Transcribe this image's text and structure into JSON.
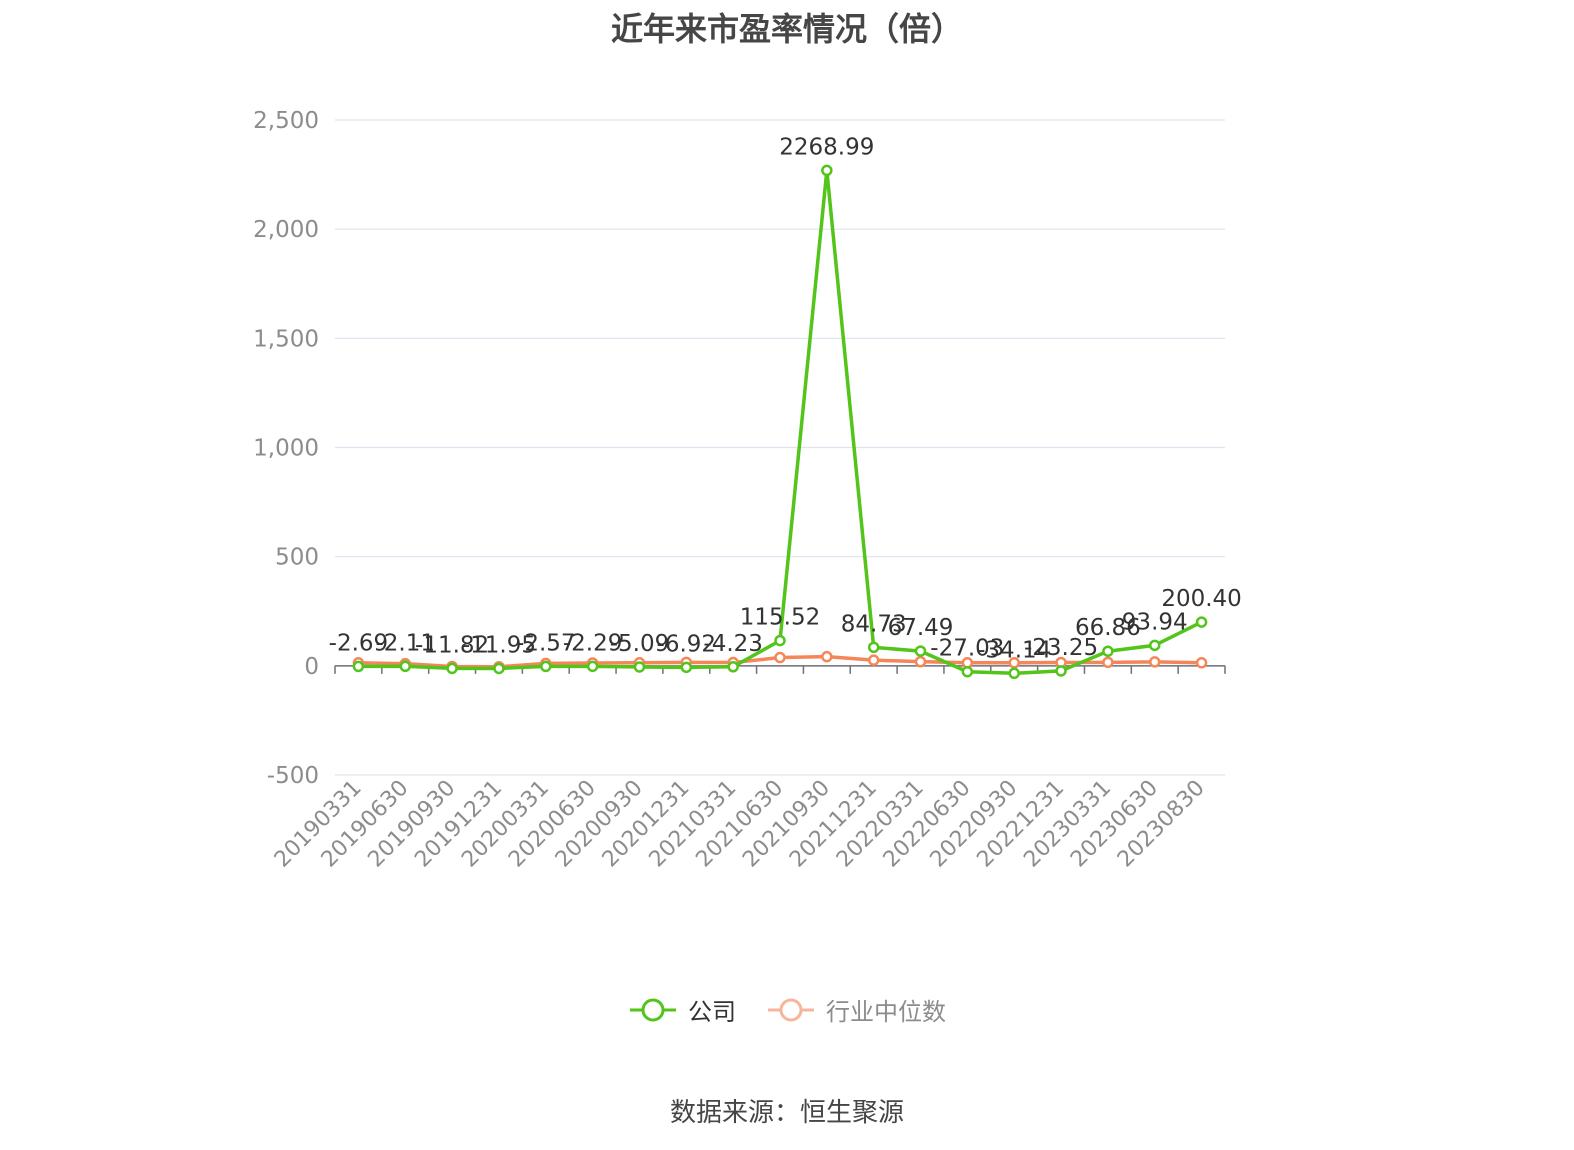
{
  "title": "近年来市盈率情况（倍）",
  "source": "数据来源：恒生聚源",
  "colors": {
    "company": "#52c41a",
    "industry": "#f5865a",
    "grid": "#dde3ef",
    "axis_text": "#8c8c8c",
    "label_text": "#333333"
  },
  "chart_data": {
    "type": "line",
    "title": "近年来市盈率情况（倍）",
    "categories": [
      "20190331",
      "20190630",
      "20190930",
      "20191231",
      "20200331",
      "20200630",
      "20200930",
      "20201231",
      "20210331",
      "20210630",
      "20210930",
      "20211231",
      "20220331",
      "20220630",
      "20220930",
      "20221231",
      "20230331",
      "20230630",
      "20230830"
    ],
    "ylim": [
      -500,
      2500
    ],
    "yticks": [
      -500,
      0,
      500,
      1000,
      1500,
      2000,
      2500
    ],
    "ytick_labels": [
      "-500",
      "0",
      "500",
      "1,000",
      "1,500",
      "2,000",
      "2,500"
    ],
    "grid": true,
    "legend_position": "bottom",
    "series": [
      {
        "name": "公司",
        "values": [
          -2.69,
          -2.11,
          -11.82,
          -11.95,
          -2.57,
          -2.29,
          -5.09,
          -6.92,
          -4.23,
          115.52,
          2268.99,
          84.73,
          67.49,
          -27.03,
          -34.14,
          -23.25,
          66.86,
          93.94,
          200.4
        ],
        "labels": [
          "-2.69",
          "-2.11",
          "-11.82",
          "-11.95",
          "-2.57",
          "-2.29",
          "-5.09",
          "-6.92",
          "-4.23",
          "115.52",
          "2268.99",
          "84.73",
          "67.49",
          "-27.03",
          "-34.14",
          "-23.25",
          "66.86",
          "93.94",
          "200.40"
        ]
      },
      {
        "name": "行业中位数",
        "values": [
          14,
          10,
          -3,
          -4,
          11,
          13,
          14,
          16,
          15,
          38,
          42,
          26,
          19,
          14,
          14,
          15,
          16,
          18,
          14
        ]
      }
    ]
  },
  "legend": {
    "items": [
      {
        "label": "公司",
        "icon": "circle-line-icon"
      },
      {
        "label": "行业中位数",
        "icon": "circle-line-icon"
      }
    ]
  }
}
